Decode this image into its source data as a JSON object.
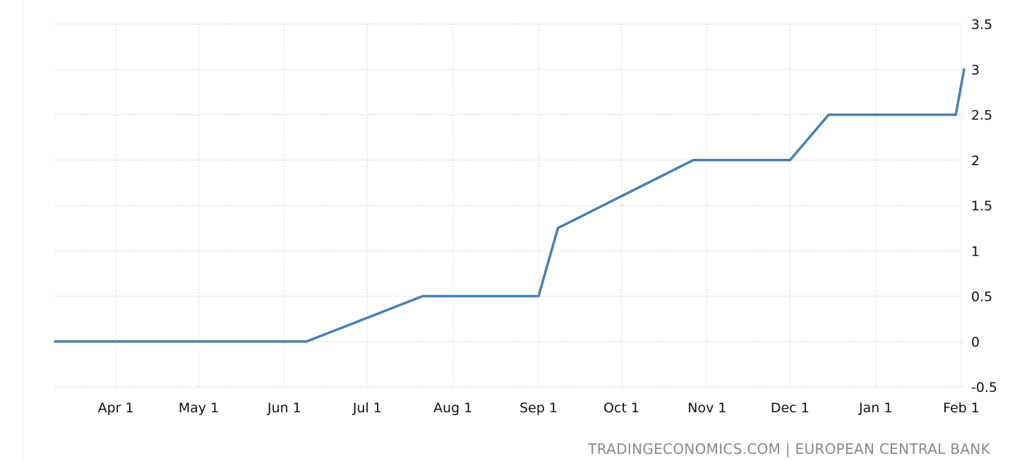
{
  "chart_data": {
    "type": "line",
    "title": "",
    "xlabel": "",
    "ylabel": "",
    "ylim": [
      -0.5,
      3.5
    ],
    "y_ticks": [
      3.5,
      3,
      2.5,
      2,
      1.5,
      1,
      0.5,
      0,
      -0.5
    ],
    "y_tick_labels": [
      "3.5",
      "3",
      "2.5",
      "2",
      "1.5",
      "1",
      "0.5",
      "0",
      "-0.5"
    ],
    "x_range": [
      "2022-03-10",
      "2023-02-02"
    ],
    "x_ticks": [
      "2022-04-01",
      "2022-05-01",
      "2022-06-01",
      "2022-07-01",
      "2022-08-01",
      "2022-09-01",
      "2022-10-01",
      "2022-11-01",
      "2022-12-01",
      "2023-01-01",
      "2023-02-01"
    ],
    "x_tick_labels": [
      "Apr 1",
      "May 1",
      "Jun 1",
      "Jul 1",
      "Aug 1",
      "Sep 1",
      "Oct 1",
      "Nov 1",
      "Dec 1",
      "Jan 1",
      "Feb 1"
    ],
    "grid": true,
    "axis_position": "right",
    "line_color": "#4a7fab",
    "series": [
      {
        "x": [
          "2022-03-10",
          "2022-06-09",
          "2022-07-21",
          "2022-09-01",
          "2022-09-08",
          "2022-10-27",
          "2022-12-01",
          "2022-12-15",
          "2023-01-30",
          "2023-02-02"
        ],
        "y": [
          0,
          0,
          0.5,
          0.5,
          1.25,
          2.0,
          2.0,
          2.5,
          2.5,
          3.0
        ]
      }
    ]
  },
  "footer": {
    "source": "TRADINGECONOMICS.COM | EUROPEAN CENTRAL BANK"
  }
}
